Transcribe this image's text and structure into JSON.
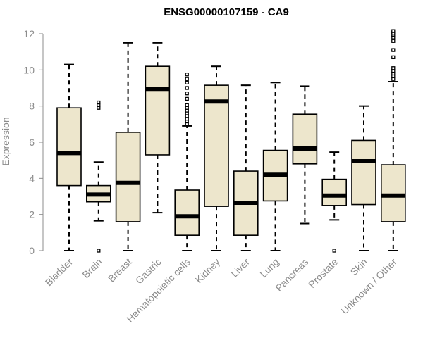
{
  "chart_data": {
    "type": "boxplot",
    "title": "ENSG00000107159 - CA9",
    "xlabel": "",
    "ylabel": "Expression",
    "ylim": [
      0,
      12
    ],
    "yticks": [
      0,
      2,
      4,
      6,
      8,
      10,
      12
    ],
    "colors": {
      "box_fill": "#ede6cc",
      "stroke": "#000000",
      "axis": "#8c8c8c"
    },
    "categories": [
      "Bladder",
      "Brain",
      "Breast",
      "Gastric",
      "Hematopoietic cells",
      "Kidney",
      "Liver",
      "Lung",
      "Pancreas",
      "Prostate",
      "Skin",
      "Unknown / Other"
    ],
    "boxes": [
      {
        "min": 0.0,
        "q1": 3.6,
        "median": 5.4,
        "q3": 7.9,
        "max": 10.3,
        "outliers": []
      },
      {
        "min": 1.65,
        "q1": 2.7,
        "median": 3.1,
        "q3": 3.6,
        "max": 4.9,
        "outliers": [
          0.0,
          7.9,
          8.05,
          8.2
        ]
      },
      {
        "min": 0.0,
        "q1": 1.6,
        "median": 3.75,
        "q3": 6.55,
        "max": 11.5,
        "outliers": []
      },
      {
        "min": 2.1,
        "q1": 5.3,
        "median": 8.95,
        "q3": 10.2,
        "max": 11.5,
        "outliers": []
      },
      {
        "min": 0.0,
        "q1": 0.85,
        "median": 1.9,
        "q3": 3.35,
        "max": 6.9,
        "outliers": [
          7.0,
          7.15,
          7.3,
          7.45,
          7.6,
          7.75,
          7.9,
          8.05,
          8.4,
          8.7,
          9.0,
          9.3,
          9.5,
          9.75
        ]
      },
      {
        "min": 0.0,
        "q1": 2.45,
        "median": 8.25,
        "q3": 9.15,
        "max": 10.2,
        "outliers": []
      },
      {
        "min": 0.0,
        "q1": 0.85,
        "median": 2.65,
        "q3": 4.4,
        "max": 9.15,
        "outliers": []
      },
      {
        "min": 0.0,
        "q1": 2.75,
        "median": 4.2,
        "q3": 5.55,
        "max": 9.3,
        "outliers": []
      },
      {
        "min": 1.5,
        "q1": 4.8,
        "median": 5.65,
        "q3": 7.55,
        "max": 9.1,
        "outliers": []
      },
      {
        "min": 1.7,
        "q1": 2.5,
        "median": 3.05,
        "q3": 3.95,
        "max": 5.45,
        "outliers": [
          0.0
        ]
      },
      {
        "min": 0.0,
        "q1": 2.55,
        "median": 4.95,
        "q3": 6.1,
        "max": 8.0,
        "outliers": []
      },
      {
        "min": 0.0,
        "q1": 1.6,
        "median": 3.05,
        "q3": 4.75,
        "max": 9.35,
        "outliers": [
          9.5,
          9.65,
          9.8,
          9.95,
          10.1,
          10.7,
          11.1,
          11.6,
          11.8,
          11.95,
          12.05,
          12.15
        ]
      }
    ]
  }
}
